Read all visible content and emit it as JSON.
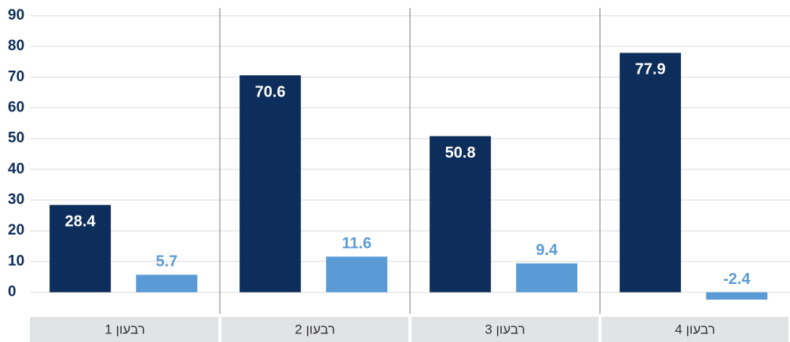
{
  "chart_data": {
    "type": "bar",
    "categories": [
      "רבעון 1",
      "רבעון 2",
      "רבעון 3",
      "רבעון 4"
    ],
    "series": [
      {
        "color": "#0d2d5a",
        "values": [
          28.4,
          70.6,
          50.8,
          77.9
        ]
      },
      {
        "color": "#5b9bd5",
        "values": [
          5.7,
          11.6,
          9.4,
          -2.4
        ]
      }
    ],
    "ylim": [
      -7,
      90
    ],
    "yticks": [
      0,
      10,
      20,
      30,
      40,
      50,
      60,
      70,
      80,
      90
    ],
    "grid": true
  }
}
